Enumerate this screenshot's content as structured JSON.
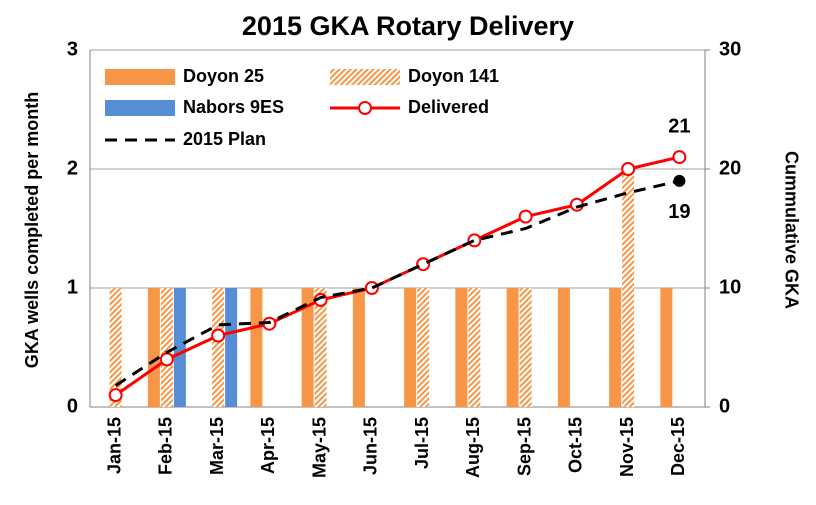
{
  "chart_data": {
    "type": "combo",
    "title": "2015 GKA Rotary Delivery",
    "y_label": "GKA wells completed per month",
    "y2_label": "Cummulative GKA",
    "categories": [
      "Jan-15",
      "Feb-15",
      "Mar-15",
      "Apr-15",
      "May-15",
      "Jun-15",
      "Jul-15",
      "Aug-15",
      "Sep-15",
      "Oct-15",
      "Nov-15",
      "Dec-15"
    ],
    "ylim": [
      0,
      3
    ],
    "yticks": [
      0,
      1,
      2,
      3
    ],
    "y2lim": [
      0,
      30
    ],
    "y2ticks": [
      0,
      10,
      20,
      30
    ],
    "grid": true,
    "legend": "top-left",
    "series": [
      {
        "name": "Doyon 25",
        "type": "bar",
        "color": "#F79646",
        "hatch": false,
        "values": [
          0,
          1,
          0,
          1,
          1,
          1,
          1,
          1,
          1,
          1,
          1,
          1
        ]
      },
      {
        "name": "Doyon 141",
        "type": "bar",
        "color": "#F79646",
        "hatch": true,
        "values": [
          1,
          1,
          1,
          0,
          1,
          0,
          1,
          1,
          1,
          0,
          2,
          0
        ]
      },
      {
        "name": "Nabors 9ES",
        "type": "bar",
        "color": "#558ED5",
        "hatch": false,
        "values": [
          0,
          1,
          1,
          0,
          0,
          0,
          0,
          0,
          0,
          0,
          0,
          0
        ]
      },
      {
        "name": "Delivered",
        "type": "line",
        "axis": "y2",
        "color": "#FF0000",
        "marker": "open-circle",
        "label_last": true,
        "values": [
          1,
          4,
          6,
          7,
          9,
          10,
          12,
          14,
          16,
          17,
          20,
          21
        ]
      },
      {
        "name": "2015 Plan",
        "type": "line",
        "axis": "y2",
        "color": "#000000",
        "dashed": true,
        "end_marker": true,
        "label_last": true,
        "values": [
          1.8,
          4.6,
          6.9,
          7.1,
          9.2,
          10,
          12,
          14,
          15,
          16.8,
          18,
          19
        ]
      }
    ]
  }
}
